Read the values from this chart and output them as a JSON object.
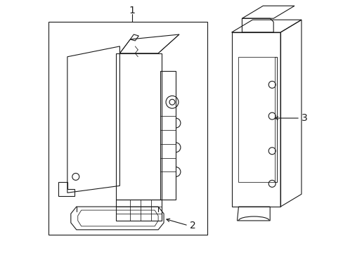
{
  "bg_color": "#ffffff",
  "line_color": "#1a1a1a",
  "lw": 0.8,
  "fig_w": 4.89,
  "fig_h": 3.6,
  "dpi": 100,
  "label1": "1",
  "label2": "2",
  "label3": "3"
}
